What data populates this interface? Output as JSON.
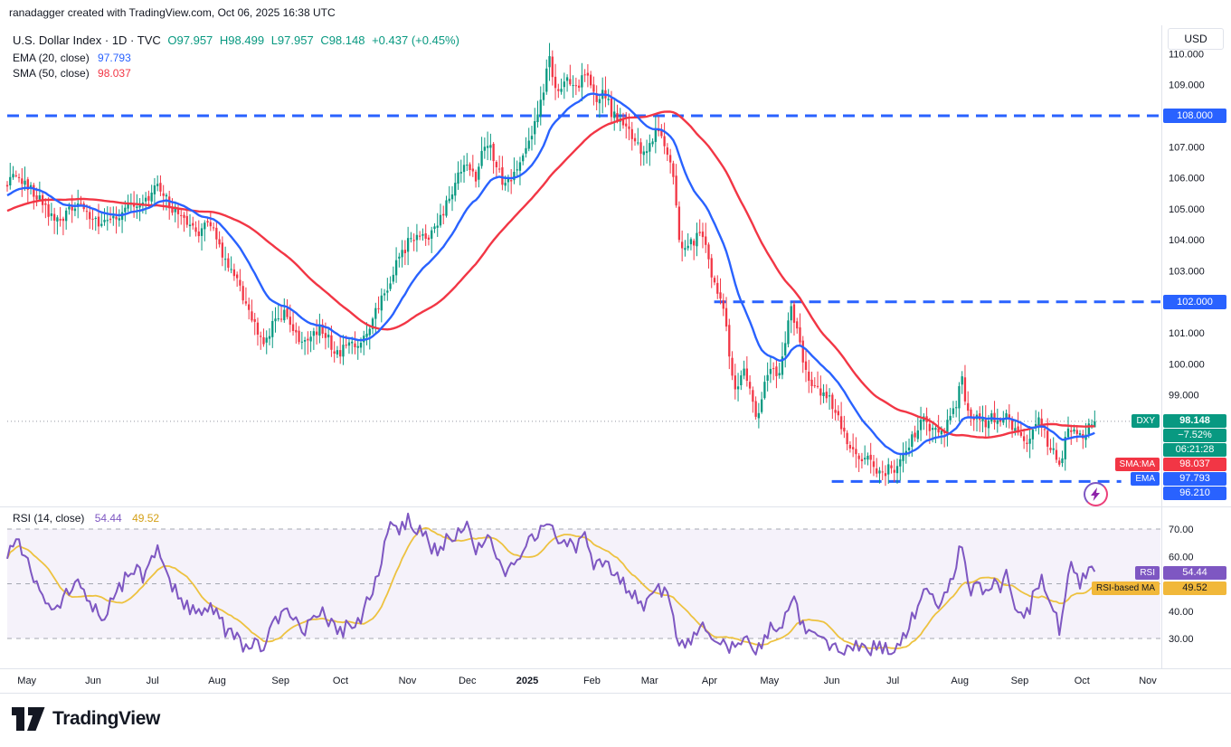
{
  "attribution": "ranadagger created with TradingView.com, Oct 06, 2025 16:38 UTC",
  "legend": {
    "title": "U.S. Dollar Index · 1D · TVC",
    "ohlc": {
      "o_label": "O",
      "o": "97.957",
      "h_label": "H",
      "h": "98.499",
      "l_label": "L",
      "l": "97.957",
      "c_label": "C",
      "c": "98.148",
      "change": "+0.437 (+0.45%)"
    },
    "ema": {
      "label": "EMA (20, close)",
      "value": "97.793"
    },
    "sma": {
      "label": "SMA (50, close)",
      "value": "98.037"
    }
  },
  "rsi_legend": {
    "label": "RSI (14, close)",
    "value": "54.44",
    "ma_value": "49.52"
  },
  "axis": {
    "currency": "USD"
  },
  "badges": {
    "level_108": "108.000",
    "level_102": "102.000",
    "level_96": "96.210",
    "dxy_tag": "DXY",
    "dxy_price": "98.148",
    "dxy_change": "−7.52%",
    "dxy_countdown": "06:21:28",
    "sma_tag": "SMA:MA",
    "sma_value": "98.037",
    "ema_tag": "EMA",
    "ema_value": "97.793",
    "rsi_tag": "RSI",
    "rsi_value": "54.44",
    "rsi_ma_tag": "RSI-based MA",
    "rsi_ma_value": "49.52"
  },
  "footer": {
    "brand": "TradingView"
  },
  "colors": {
    "up": "#089981",
    "down": "#f23645",
    "ema": "#2962ff",
    "sma": "#f23645",
    "level": "#2962ff",
    "rsi": "#7e57c2",
    "rsi_ma": "#edc240",
    "rsi_band": "rgba(126,87,194,0.08)",
    "border": "#e0e3eb",
    "axis_text": "#131722",
    "price_line": "#9598a1"
  },
  "chart_data": {
    "type": "candlestick",
    "title": "U.S. Dollar Index",
    "symbol": "DXY",
    "exchange": "TVC",
    "timeframe": "1D",
    "last_bar": {
      "open": 97.957,
      "high": 98.499,
      "low": 97.957,
      "close": 98.148
    },
    "current_price": 98.148,
    "change": 0.437,
    "change_pct": 0.45,
    "price_axis": {
      "min": 95.4,
      "max": 110.9,
      "ticks": [
        {
          "v": 110,
          "label": "110.000"
        },
        {
          "v": 109,
          "label": "109.000"
        },
        {
          "v": 108,
          "label": "108.000"
        },
        {
          "v": 107,
          "label": "107.000"
        },
        {
          "v": 106,
          "label": "106.000"
        },
        {
          "v": 105,
          "label": "105.000"
        },
        {
          "v": 104,
          "label": "104.000"
        },
        {
          "v": 103,
          "label": "103.000"
        },
        {
          "v": 102,
          "label": "102.000"
        },
        {
          "v": 101,
          "label": "101.000"
        },
        {
          "v": 100,
          "label": "100.000"
        },
        {
          "v": 99,
          "label": "99.000"
        }
      ]
    },
    "levels": [
      {
        "value": 108.0,
        "t_start": 0.0
      },
      {
        "value": 102.0,
        "t_start": 0.613
      },
      {
        "value": 96.21,
        "t_start": 0.715,
        "t_end": 0.966
      }
    ],
    "overlays": [
      {
        "name": "EMA 20",
        "color": "#2962ff",
        "last": 97.793
      },
      {
        "name": "SMA 50",
        "color": "#f23645",
        "last": 98.037
      }
    ],
    "bar_count": 370,
    "bars_t_end": 0.943,
    "dxy_close_anchors": [
      [
        0,
        105.7
      ],
      [
        0.008,
        106.2
      ],
      [
        0.02,
        105.6
      ],
      [
        0.032,
        105.1
      ],
      [
        0.042,
        104.5
      ],
      [
        0.052,
        104.9
      ],
      [
        0.062,
        105.1
      ],
      [
        0.072,
        104.7
      ],
      [
        0.08,
        104.5
      ],
      [
        0.09,
        104.6
      ],
      [
        0.1,
        105.0
      ],
      [
        0.108,
        105.2
      ],
      [
        0.118,
        105.1
      ],
      [
        0.124,
        105.4
      ],
      [
        0.132,
        105.8
      ],
      [
        0.14,
        105.1
      ],
      [
        0.148,
        104.9
      ],
      [
        0.158,
        104.5
      ],
      [
        0.166,
        104.3
      ],
      [
        0.174,
        104.4
      ],
      [
        0.182,
        104.1
      ],
      [
        0.19,
        103.2
      ],
      [
        0.198,
        102.9
      ],
      [
        0.206,
        101.9
      ],
      [
        0.214,
        101.3
      ],
      [
        0.222,
        100.8
      ],
      [
        0.23,
        101.2
      ],
      [
        0.24,
        101.6
      ],
      [
        0.248,
        101.1
      ],
      [
        0.256,
        100.6
      ],
      [
        0.264,
        100.9
      ],
      [
        0.272,
        101.1
      ],
      [
        0.28,
        100.7
      ],
      [
        0.288,
        100.3
      ],
      [
        0.296,
        100.8
      ],
      [
        0.302,
        100.4
      ],
      [
        0.31,
        100.9
      ],
      [
        0.318,
        101.5
      ],
      [
        0.328,
        102.3
      ],
      [
        0.338,
        103.3
      ],
      [
        0.348,
        103.9
      ],
      [
        0.356,
        104.3
      ],
      [
        0.364,
        104.0
      ],
      [
        0.372,
        104.4
      ],
      [
        0.382,
        105.3
      ],
      [
        0.39,
        106.0
      ],
      [
        0.398,
        106.5
      ],
      [
        0.406,
        106.0
      ],
      [
        0.412,
        106.8
      ],
      [
        0.418,
        107.0
      ],
      [
        0.424,
        106.4
      ],
      [
        0.43,
        105.8
      ],
      [
        0.438,
        106.1
      ],
      [
        0.446,
        106.5
      ],
      [
        0.452,
        107.1
      ],
      [
        0.458,
        107.9
      ],
      [
        0.464,
        108.6
      ],
      [
        0.47,
        109.9
      ],
      [
        0.474,
        109.2
      ],
      [
        0.478,
        108.7
      ],
      [
        0.484,
        109.3
      ],
      [
        0.49,
        108.8
      ],
      [
        0.496,
        109.1
      ],
      [
        0.502,
        109.6
      ],
      [
        0.506,
        108.9
      ],
      [
        0.512,
        108.3
      ],
      [
        0.518,
        108.8
      ],
      [
        0.524,
        108.1
      ],
      [
        0.53,
        107.8
      ],
      [
        0.538,
        107.6
      ],
      [
        0.546,
        107.1
      ],
      [
        0.552,
        106.7
      ],
      [
        0.558,
        107.2
      ],
      [
        0.564,
        107.5
      ],
      [
        0.57,
        107.1
      ],
      [
        0.576,
        106.5
      ],
      [
        0.582,
        104.2
      ],
      [
        0.588,
        103.6
      ],
      [
        0.596,
        104.0
      ],
      [
        0.604,
        104.3
      ],
      [
        0.61,
        103.0
      ],
      [
        0.616,
        102.4
      ],
      [
        0.622,
        101.8
      ],
      [
        0.628,
        99.8
      ],
      [
        0.632,
        99.1
      ],
      [
        0.638,
        99.9
      ],
      [
        0.644,
        99.3
      ],
      [
        0.65,
        98.3
      ],
      [
        0.656,
        99.2
      ],
      [
        0.662,
        99.8
      ],
      [
        0.668,
        99.6
      ],
      [
        0.674,
        100.7
      ],
      [
        0.68,
        101.8
      ],
      [
        0.685,
        101.1
      ],
      [
        0.69,
        100.2
      ],
      [
        0.696,
        99.5
      ],
      [
        0.702,
        99.2
      ],
      [
        0.71,
        99.0
      ],
      [
        0.716,
        98.7
      ],
      [
        0.722,
        98.1
      ],
      [
        0.728,
        97.4
      ],
      [
        0.734,
        97.2
      ],
      [
        0.74,
        97.0
      ],
      [
        0.746,
        96.9
      ],
      [
        0.752,
        96.7
      ],
      [
        0.758,
        96.5
      ],
      [
        0.764,
        96.6
      ],
      [
        0.77,
        96.5
      ],
      [
        0.776,
        96.9
      ],
      [
        0.782,
        97.4
      ],
      [
        0.788,
        97.8
      ],
      [
        0.794,
        98.3
      ],
      [
        0.8,
        98.0
      ],
      [
        0.806,
        97.7
      ],
      [
        0.812,
        97.9
      ],
      [
        0.818,
        98.2
      ],
      [
        0.823,
        98.7
      ],
      [
        0.827,
        99.8
      ],
      [
        0.831,
        98.6
      ],
      [
        0.836,
        98.1
      ],
      [
        0.842,
        98.3
      ],
      [
        0.848,
        98.0
      ],
      [
        0.854,
        98.3
      ],
      [
        0.86,
        98.1
      ],
      [
        0.866,
        98.4
      ],
      [
        0.872,
        97.9
      ],
      [
        0.878,
        97.6
      ],
      [
        0.884,
        97.3
      ],
      [
        0.89,
        97.8
      ],
      [
        0.896,
        98.2
      ],
      [
        0.902,
        97.5
      ],
      [
        0.908,
        97.2
      ],
      [
        0.913,
        96.65
      ],
      [
        0.918,
        97.6
      ],
      [
        0.924,
        98.0
      ],
      [
        0.93,
        97.7
      ],
      [
        0.936,
        97.8
      ],
      [
        0.943,
        98.148
      ]
    ],
    "rsi": {
      "period": 14,
      "last": 54.44,
      "ma_last": 49.52,
      "band": [
        30,
        70
      ],
      "ticks": [
        {
          "v": 70,
          "label": "70.00"
        },
        {
          "v": 60,
          "label": "60.00"
        },
        {
          "v": 40,
          "label": "40.00"
        },
        {
          "v": 30,
          "label": "30.00"
        }
      ],
      "anchors": [
        [
          0,
          62
        ],
        [
          0.008,
          67
        ],
        [
          0.016,
          60
        ],
        [
          0.024,
          52
        ],
        [
          0.032,
          46
        ],
        [
          0.042,
          40
        ],
        [
          0.052,
          48
        ],
        [
          0.062,
          52
        ],
        [
          0.072,
          44
        ],
        [
          0.08,
          38
        ],
        [
          0.09,
          42
        ],
        [
          0.1,
          50
        ],
        [
          0.108,
          55
        ],
        [
          0.118,
          53
        ],
        [
          0.124,
          58
        ],
        [
          0.132,
          63
        ],
        [
          0.14,
          50
        ],
        [
          0.148,
          46
        ],
        [
          0.158,
          41
        ],
        [
          0.166,
          40
        ],
        [
          0.174,
          42
        ],
        [
          0.182,
          38
        ],
        [
          0.19,
          33
        ],
        [
          0.198,
          31
        ],
        [
          0.206,
          27
        ],
        [
          0.214,
          29
        ],
        [
          0.222,
          27
        ],
        [
          0.23,
          34
        ],
        [
          0.24,
          42
        ],
        [
          0.248,
          38
        ],
        [
          0.256,
          32
        ],
        [
          0.264,
          36
        ],
        [
          0.272,
          40
        ],
        [
          0.28,
          35
        ],
        [
          0.288,
          31
        ],
        [
          0.296,
          37
        ],
        [
          0.302,
          34
        ],
        [
          0.31,
          40
        ],
        [
          0.318,
          50
        ],
        [
          0.328,
          64
        ],
        [
          0.334,
          74
        ],
        [
          0.34,
          70
        ],
        [
          0.348,
          73
        ],
        [
          0.352,
          68
        ],
        [
          0.358,
          71
        ],
        [
          0.366,
          64
        ],
        [
          0.372,
          62
        ],
        [
          0.382,
          66
        ],
        [
          0.39,
          69
        ],
        [
          0.398,
          71
        ],
        [
          0.406,
          60
        ],
        [
          0.412,
          66
        ],
        [
          0.418,
          69
        ],
        [
          0.424,
          58
        ],
        [
          0.43,
          53
        ],
        [
          0.438,
          57
        ],
        [
          0.446,
          61
        ],
        [
          0.452,
          65
        ],
        [
          0.458,
          68
        ],
        [
          0.464,
          70
        ],
        [
          0.47,
          74
        ],
        [
          0.474,
          67
        ],
        [
          0.478,
          63
        ],
        [
          0.484,
          67
        ],
        [
          0.49,
          63
        ],
        [
          0.496,
          65
        ],
        [
          0.502,
          68
        ],
        [
          0.506,
          60
        ],
        [
          0.512,
          55
        ],
        [
          0.518,
          60
        ],
        [
          0.524,
          54
        ],
        [
          0.53,
          51
        ],
        [
          0.538,
          49
        ],
        [
          0.546,
          44
        ],
        [
          0.552,
          41
        ],
        [
          0.558,
          47
        ],
        [
          0.564,
          50
        ],
        [
          0.57,
          46
        ],
        [
          0.576,
          41
        ],
        [
          0.582,
          29
        ],
        [
          0.588,
          27
        ],
        [
          0.596,
          31
        ],
        [
          0.604,
          34
        ],
        [
          0.61,
          30
        ],
        [
          0.616,
          28
        ],
        [
          0.622,
          27
        ],
        [
          0.628,
          26
        ],
        [
          0.632,
          26
        ],
        [
          0.638,
          30
        ],
        [
          0.644,
          28
        ],
        [
          0.65,
          26
        ],
        [
          0.656,
          30
        ],
        [
          0.662,
          33
        ],
        [
          0.668,
          31
        ],
        [
          0.674,
          39
        ],
        [
          0.68,
          46
        ],
        [
          0.685,
          41
        ],
        [
          0.69,
          35
        ],
        [
          0.696,
          31
        ],
        [
          0.702,
          30
        ],
        [
          0.71,
          29
        ],
        [
          0.716,
          28
        ],
        [
          0.722,
          27
        ],
        [
          0.728,
          26
        ],
        [
          0.734,
          27
        ],
        [
          0.74,
          28
        ],
        [
          0.746,
          27
        ],
        [
          0.752,
          26
        ],
        [
          0.758,
          26
        ],
        [
          0.764,
          27
        ],
        [
          0.77,
          26
        ],
        [
          0.776,
          30
        ],
        [
          0.782,
          35
        ],
        [
          0.788,
          41
        ],
        [
          0.794,
          49
        ],
        [
          0.8,
          46
        ],
        [
          0.806,
          43
        ],
        [
          0.812,
          46
        ],
        [
          0.818,
          51
        ],
        [
          0.823,
          56
        ],
        [
          0.827,
          68
        ],
        [
          0.831,
          55
        ],
        [
          0.836,
          48
        ],
        [
          0.842,
          51
        ],
        [
          0.848,
          46
        ],
        [
          0.854,
          51
        ],
        [
          0.86,
          47
        ],
        [
          0.866,
          54
        ],
        [
          0.872,
          45
        ],
        [
          0.878,
          41
        ],
        [
          0.884,
          38
        ],
        [
          0.89,
          45
        ],
        [
          0.896,
          53
        ],
        [
          0.902,
          43
        ],
        [
          0.908,
          39
        ],
        [
          0.913,
          33
        ],
        [
          0.918,
          49
        ],
        [
          0.924,
          57
        ],
        [
          0.93,
          50
        ],
        [
          0.936,
          53
        ],
        [
          0.943,
          54.44
        ]
      ]
    },
    "x_ticks": [
      {
        "label": "May",
        "t": 0.017
      },
      {
        "label": "Jun",
        "t": 0.0745
      },
      {
        "label": "Jul",
        "t": 0.126
      },
      {
        "label": "Aug",
        "t": 0.182
      },
      {
        "label": "Sep",
        "t": 0.237
      },
      {
        "label": "Oct",
        "t": 0.289
      },
      {
        "label": "Nov",
        "t": 0.347
      },
      {
        "label": "Dec",
        "t": 0.399
      },
      {
        "label": "2025",
        "t": 0.451
      },
      {
        "label": "Feb",
        "t": 0.507
      },
      {
        "label": "Mar",
        "t": 0.557
      },
      {
        "label": "Apr",
        "t": 0.609
      },
      {
        "label": "May",
        "t": 0.661
      },
      {
        "label": "Jun",
        "t": 0.715
      },
      {
        "label": "Jul",
        "t": 0.768
      },
      {
        "label": "Aug",
        "t": 0.826
      },
      {
        "label": "Sep",
        "t": 0.878
      },
      {
        "label": "Oct",
        "t": 0.932
      },
      {
        "label": "Nov",
        "t": 0.989
      }
    ]
  }
}
